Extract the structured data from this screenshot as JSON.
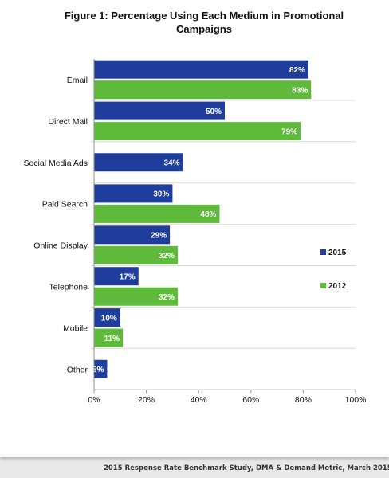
{
  "chart_data": {
    "type": "bar",
    "orientation": "horizontal",
    "title": "Figure 1: Percentage Using Each Medium in Promotional Campaigns",
    "categories": [
      "Email",
      "Direct Mail",
      "Social Media Ads",
      "Paid Search",
      "Online Display",
      "Telephone",
      "Mobile",
      "Other"
    ],
    "series": [
      {
        "name": "2015",
        "color": "#1f3e9b",
        "values": [
          82,
          50,
          34,
          30,
          29,
          17,
          10,
          5
        ],
        "labels": [
          "82%",
          "50%",
          "34%",
          "30%",
          "29%",
          "17%",
          "10%",
          "5%"
        ]
      },
      {
        "name": "2012",
        "color": "#5fba3b",
        "values": [
          83,
          79,
          null,
          48,
          32,
          32,
          11,
          null
        ],
        "labels": [
          "83%",
          "79%",
          "",
          "48%",
          "32%",
          "32%",
          "11%",
          ""
        ]
      }
    ],
    "xlim": [
      0,
      100
    ],
    "xticks": [
      0,
      20,
      40,
      60,
      80,
      100
    ],
    "xtick_labels": [
      "0%",
      "20%",
      "40%",
      "60%",
      "80%",
      "100%"
    ],
    "grid": false,
    "legend_position": "right"
  },
  "source": "2015 Response Rate Benchmark Study, DMA & Demand Metric, March 2015,"
}
